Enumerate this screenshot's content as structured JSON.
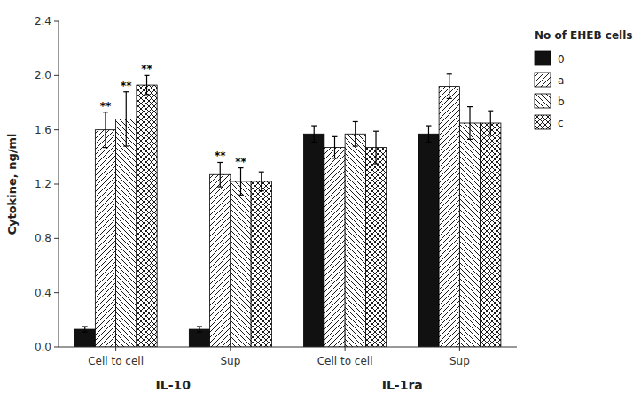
{
  "chart_data": {
    "type": "bar",
    "title": "No of EHEB cells",
    "ylabel": "Cytokine, ng/ml",
    "categories": [
      "Cell to cell",
      "Sup",
      "Cell to cell",
      "Sup"
    ],
    "category_groups": [
      {
        "label": "IL-10",
        "categories": [
          0,
          1
        ]
      },
      {
        "label": "IL-1ra",
        "categories": [
          2,
          3
        ]
      }
    ],
    "series": [
      {
        "name": "0",
        "color": "#111111",
        "values": [
          0.13,
          0.13,
          1.57,
          1.57
        ],
        "errors": [
          0.02,
          0.02,
          0.06,
          0.06
        ]
      },
      {
        "name": "a",
        "color": "white",
        "values": [
          1.6,
          1.27,
          1.47,
          1.92
        ],
        "errors": [
          0.13,
          0.09,
          0.08,
          0.09
        ]
      },
      {
        "name": "b",
        "color": "white",
        "values": [
          1.68,
          1.22,
          1.57,
          1.65
        ],
        "errors": [
          0.2,
          0.1,
          0.09,
          0.12
        ]
      },
      {
        "name": "c",
        "color": "white",
        "values": [
          1.93,
          1.22,
          1.47,
          1.65
        ],
        "errors": [
          0.07,
          0.07,
          0.12,
          0.09
        ]
      }
    ],
    "annotations": [
      {
        "text": "**",
        "series": 1,
        "category": 0
      },
      {
        "text": "**",
        "series": 2,
        "category": 0
      },
      {
        "text": "**",
        "series": 3,
        "category": 0
      },
      {
        "text": "**",
        "series": 1,
        "category": 1
      },
      {
        "text": "**",
        "series": 2,
        "category": 1
      }
    ],
    "ylim": [
      0.0,
      2.4
    ],
    "yticks": [
      {
        "value": 0.0,
        "label": "0.0"
      },
      0.4,
      0.8,
      1.2,
      1.6,
      {
        "value": 2.0,
        "label": "2.0"
      },
      2.4
    ],
    "grid": false,
    "legend": "right"
  }
}
